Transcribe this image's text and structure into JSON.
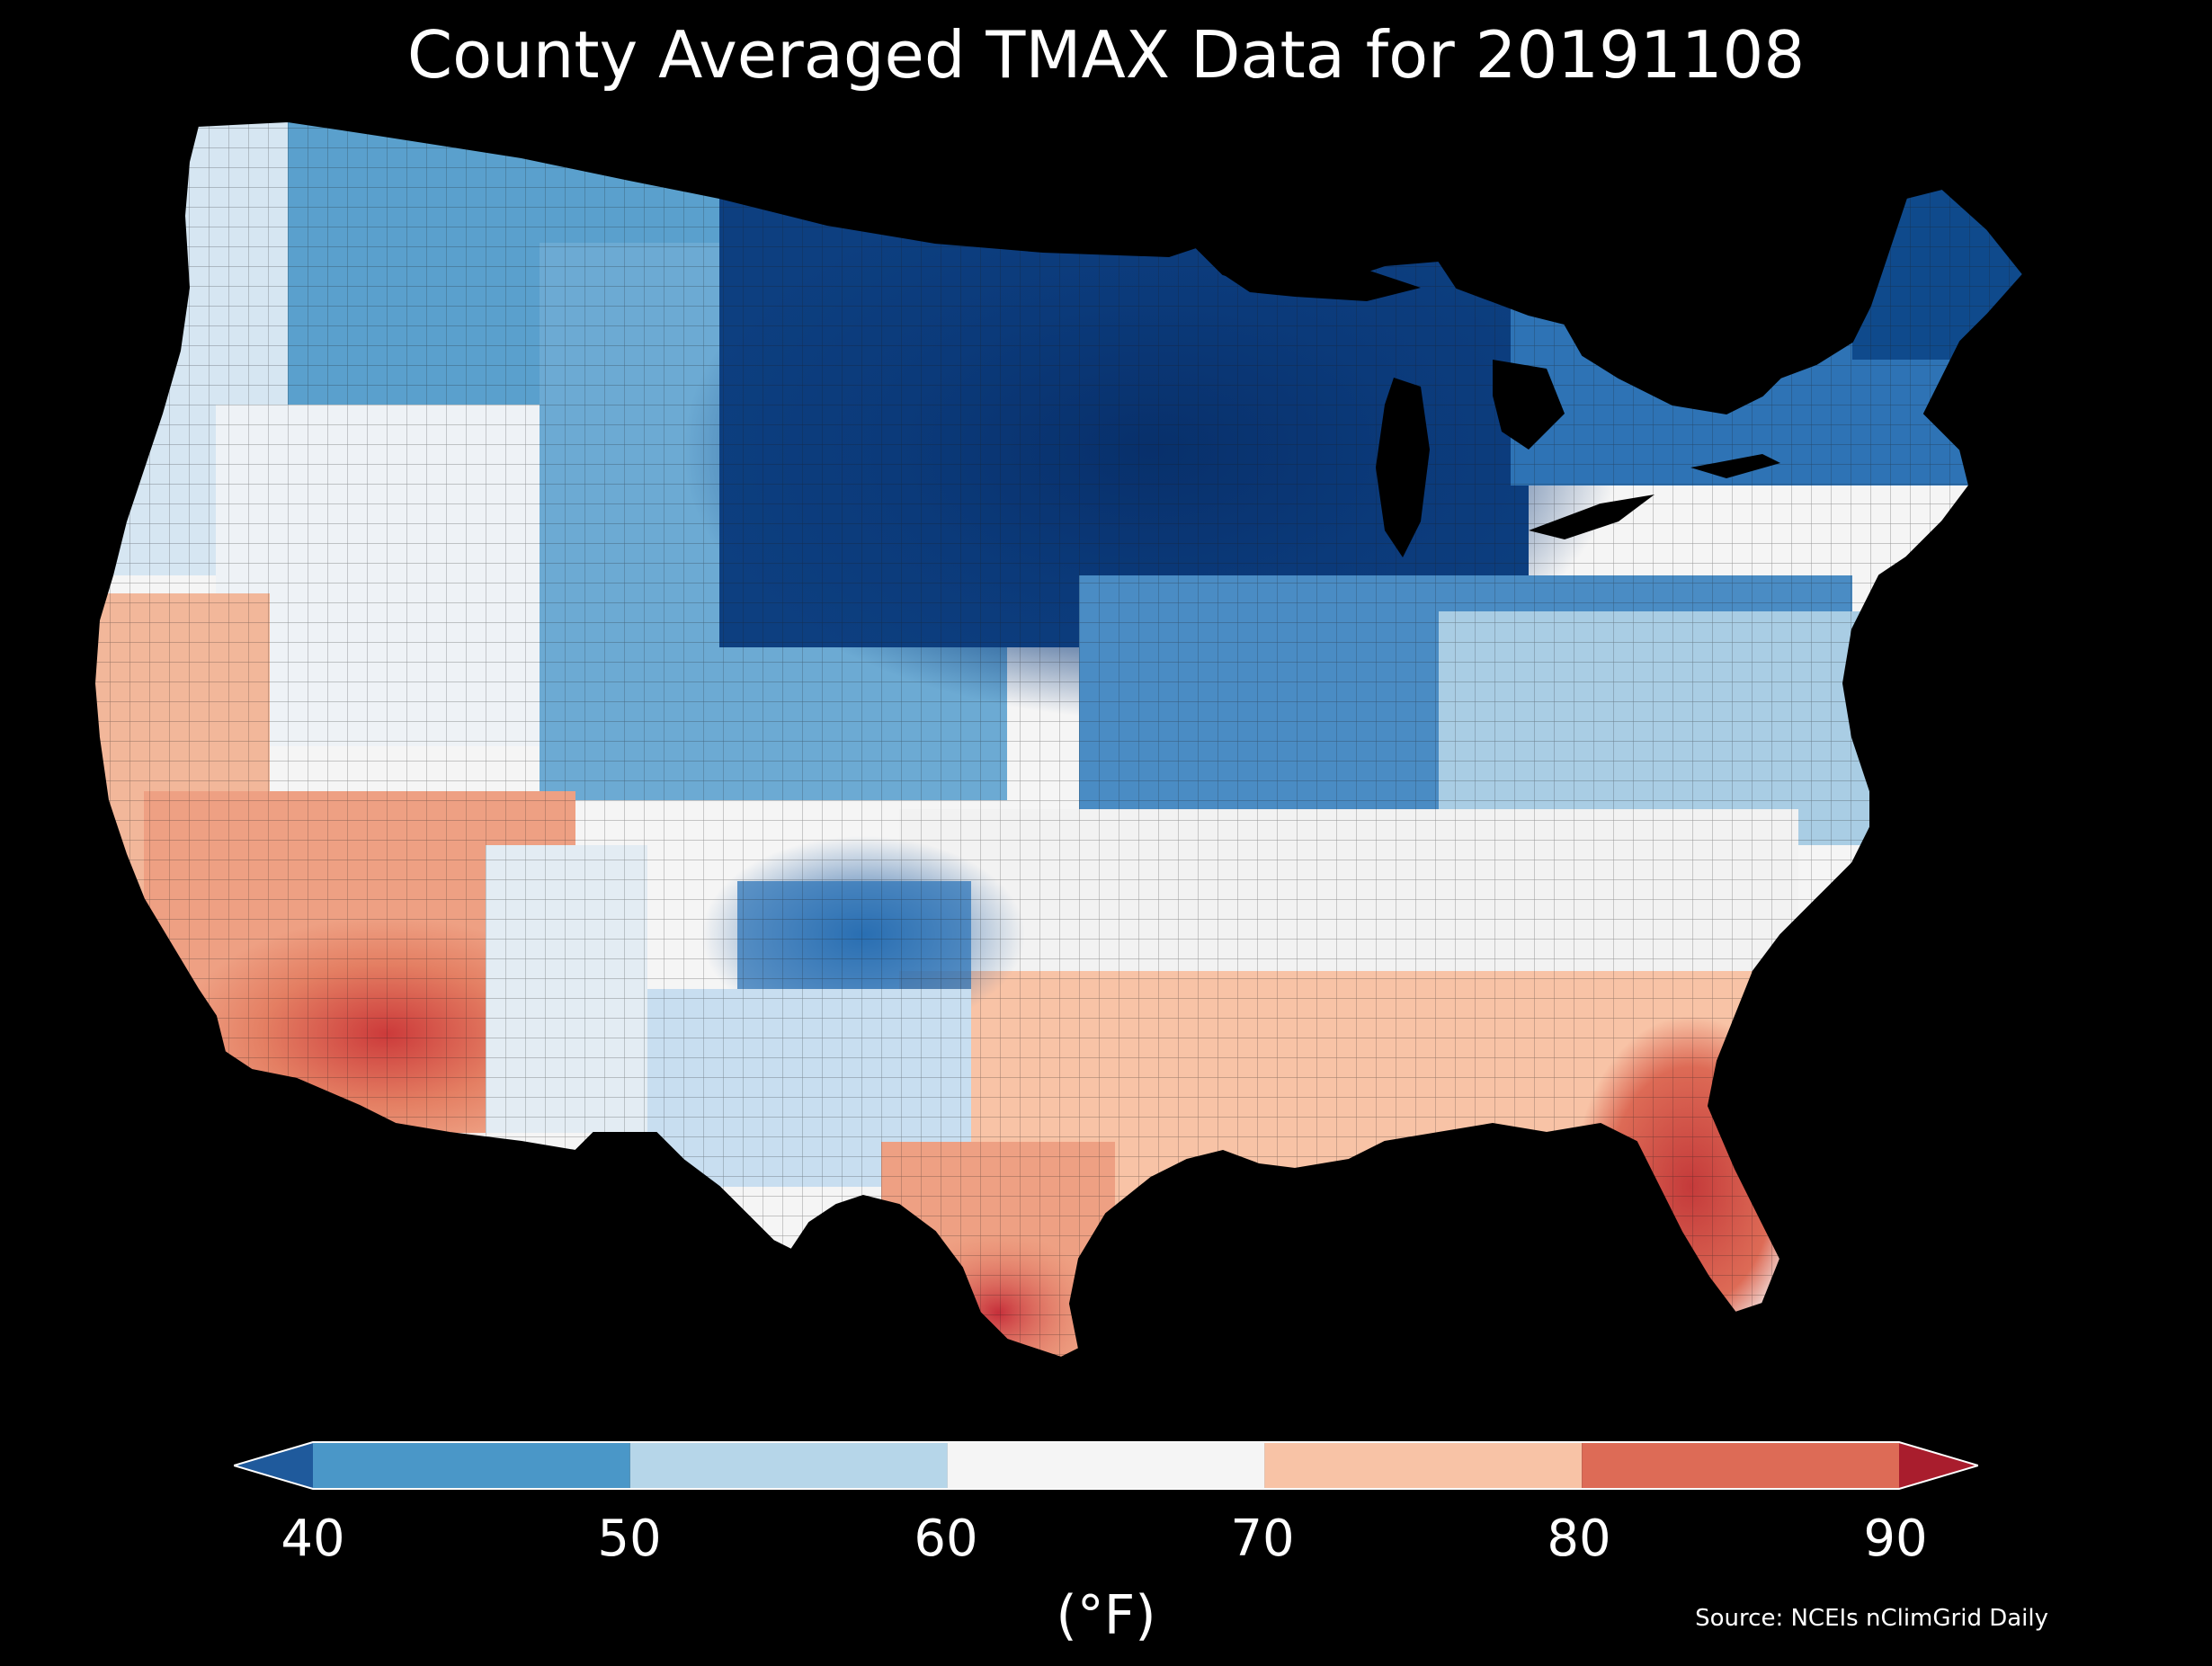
{
  "title": "County Averaged TMAX Data for 20191108",
  "source": "Source: NCEIs nClimGrid Daily",
  "colorbar": {
    "unit": "(°F)",
    "ticks": [
      "40",
      "50",
      "60",
      "70",
      "80",
      "90"
    ],
    "bins": [
      {
        "from": 40,
        "to": 50,
        "color": "#4a97c8"
      },
      {
        "from": 50,
        "to": 60,
        "color": "#b6d6e9"
      },
      {
        "from": 60,
        "to": 70,
        "color": "#f5f5f5"
      },
      {
        "from": 70,
        "to": 80,
        "color": "#f8c3a6"
      },
      {
        "from": 80,
        "to": 90,
        "color": "#dd6b56"
      }
    ],
    "under_color": "#1f5a9c",
    "over_color": "#a91d2d",
    "extend": "both"
  },
  "map_data": {
    "region": "Contiguous United States",
    "variable": "TMAX",
    "units": "°F",
    "date": "20191108",
    "regional_pattern": [
      {
        "area": "Upper Midwest / Great Lakes",
        "band": "<40"
      },
      {
        "area": "Maine",
        "band": "<40"
      },
      {
        "area": "Northern Rockies / Plains",
        "band": "40-50"
      },
      {
        "area": "Texas Panhandle / Oklahoma",
        "band": "<40"
      },
      {
        "area": "Pacific Northwest",
        "band": "50-60"
      },
      {
        "area": "Great Basin",
        "band": "60-70"
      },
      {
        "area": "Mid-Atlantic / Tennessee Valley",
        "band": "60-70"
      },
      {
        "area": "Southeast / Gulf Coast",
        "band": "70-80"
      },
      {
        "area": "Florida Peninsula",
        "band": "80-90"
      },
      {
        "area": "Southern California / Arizona deserts",
        "band": "80-90"
      },
      {
        "area": "South Texas",
        "band": "80-90"
      }
    ]
  },
  "colors": {
    "background": "#000000",
    "text": "#ffffff",
    "county_border": "#1b1b1b",
    "state_border": "#000000"
  }
}
